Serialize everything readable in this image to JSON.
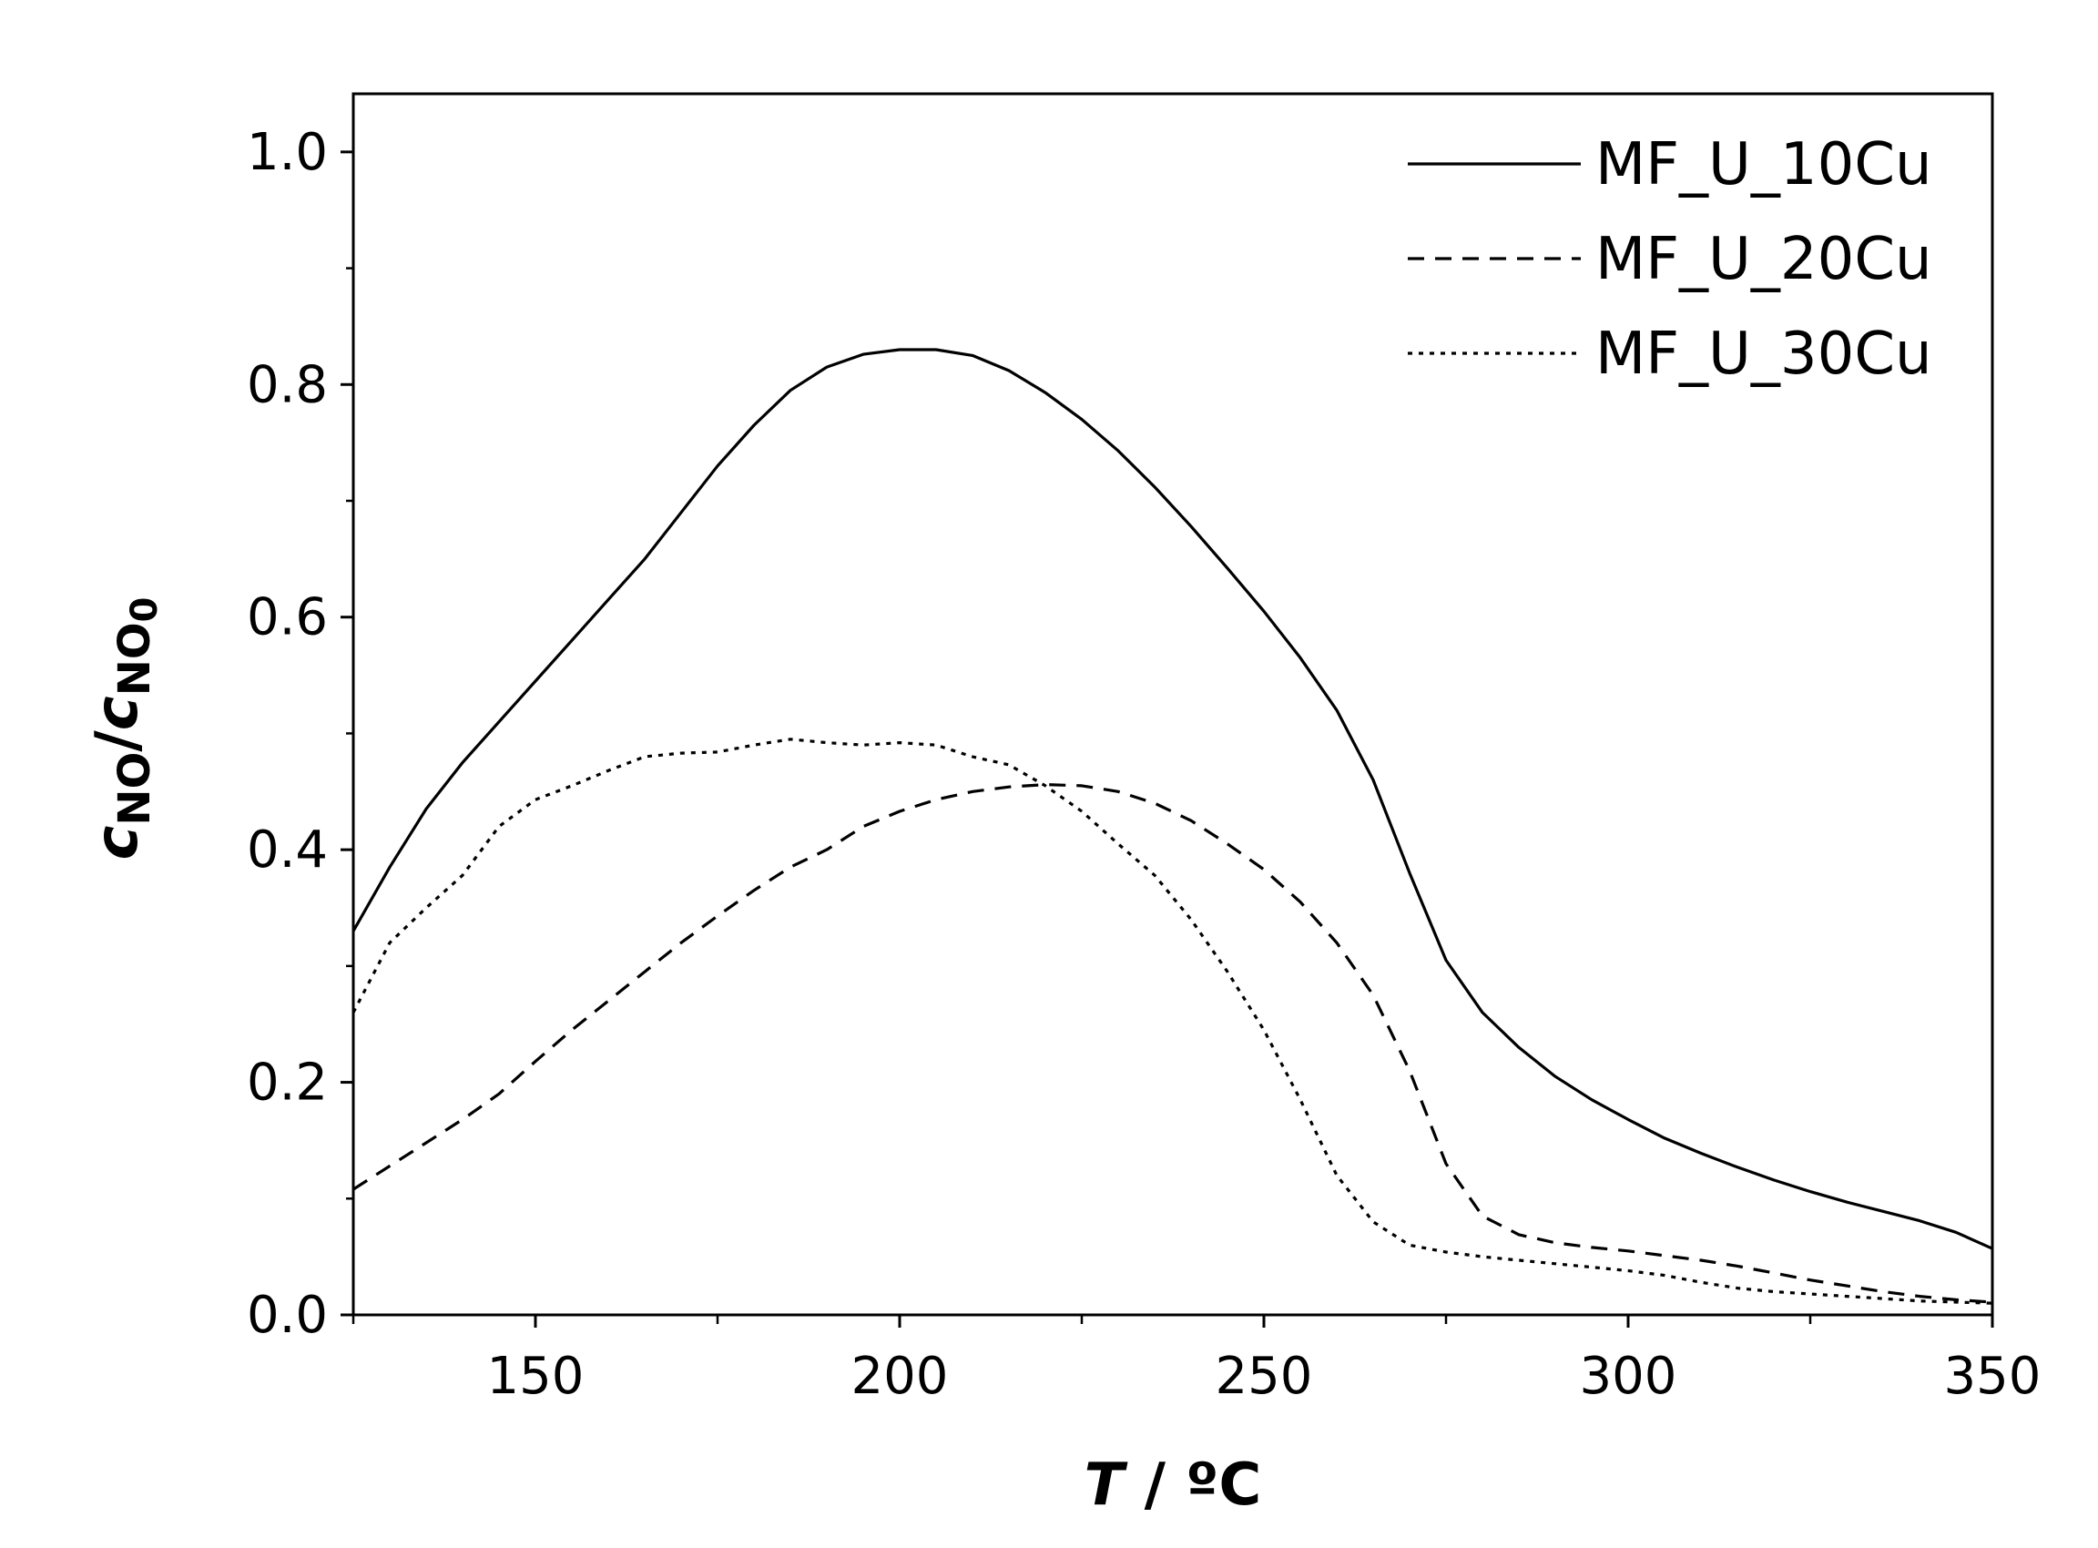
{
  "chart_data": {
    "type": "line",
    "title": "",
    "xlabel": {
      "italic": "T",
      "rest": " / ºC"
    },
    "ylabel": {
      "c1": "c",
      "sub1": "NO",
      "slash": "/",
      "c2": "c",
      "sub2": "NO",
      "subsub2": "0"
    },
    "xlim": [
      125,
      350
    ],
    "ylim": [
      0.0,
      1.05
    ],
    "xticks": [
      "150",
      "200",
      "250",
      "300",
      "350"
    ],
    "yticks": [
      "0.0",
      "0.2",
      "0.4",
      "0.6",
      "0.8",
      "1.0"
    ],
    "grid": false,
    "legend_position": "top-right",
    "series": [
      {
        "name": "MF_U_10Cu",
        "style": "solid",
        "x": [
          125,
          130,
          135,
          140,
          145,
          150,
          155,
          160,
          165,
          170,
          175,
          180,
          185,
          190,
          195,
          200,
          205,
          210,
          215,
          220,
          225,
          230,
          235,
          240,
          245,
          250,
          255,
          260,
          265,
          270,
          275,
          280,
          285,
          290,
          295,
          300,
          305,
          310,
          315,
          320,
          325,
          330,
          335,
          340,
          345,
          350
        ],
        "y": [
          0.33,
          0.385,
          0.435,
          0.475,
          0.51,
          0.545,
          0.58,
          0.615,
          0.65,
          0.69,
          0.73,
          0.765,
          0.795,
          0.815,
          0.826,
          0.83,
          0.83,
          0.825,
          0.812,
          0.793,
          0.77,
          0.743,
          0.712,
          0.678,
          0.642,
          0.605,
          0.565,
          0.52,
          0.46,
          0.38,
          0.305,
          0.26,
          0.23,
          0.205,
          0.185,
          0.168,
          0.152,
          0.139,
          0.127,
          0.116,
          0.106,
          0.097,
          0.089,
          0.081,
          0.071,
          0.057
        ]
      },
      {
        "name": "MF_U_20Cu",
        "style": "dashed",
        "x": [
          125,
          130,
          135,
          140,
          145,
          150,
          155,
          160,
          165,
          170,
          175,
          180,
          185,
          190,
          195,
          200,
          205,
          210,
          215,
          220,
          225,
          230,
          235,
          240,
          245,
          250,
          255,
          260,
          265,
          270,
          275,
          280,
          285,
          290,
          295,
          300,
          305,
          310,
          315,
          320,
          325,
          330,
          335,
          340,
          345,
          350
        ],
        "y": [
          0.108,
          0.128,
          0.148,
          0.168,
          0.19,
          0.218,
          0.245,
          0.27,
          0.295,
          0.32,
          0.343,
          0.365,
          0.385,
          0.4,
          0.42,
          0.433,
          0.443,
          0.45,
          0.454,
          0.456,
          0.455,
          0.45,
          0.44,
          0.425,
          0.405,
          0.383,
          0.355,
          0.32,
          0.275,
          0.21,
          0.13,
          0.085,
          0.069,
          0.062,
          0.058,
          0.055,
          0.051,
          0.047,
          0.042,
          0.036,
          0.03,
          0.025,
          0.02,
          0.016,
          0.013,
          0.011
        ]
      },
      {
        "name": "MF_U_30Cu",
        "style": "dotted",
        "x": [
          125,
          130,
          135,
          140,
          145,
          150,
          155,
          160,
          165,
          170,
          175,
          180,
          185,
          190,
          195,
          200,
          205,
          210,
          215,
          220,
          225,
          230,
          235,
          240,
          245,
          250,
          255,
          260,
          265,
          270,
          275,
          280,
          285,
          290,
          295,
          300,
          305,
          310,
          315,
          320,
          325,
          330,
          335,
          340,
          345,
          350
        ],
        "y": [
          0.26,
          0.32,
          0.35,
          0.378,
          0.42,
          0.443,
          0.455,
          0.468,
          0.48,
          0.483,
          0.484,
          0.49,
          0.495,
          0.492,
          0.49,
          0.492,
          0.49,
          0.48,
          0.473,
          0.455,
          0.433,
          0.405,
          0.378,
          0.34,
          0.295,
          0.245,
          0.185,
          0.12,
          0.08,
          0.06,
          0.054,
          0.05,
          0.047,
          0.044,
          0.041,
          0.038,
          0.034,
          0.028,
          0.023,
          0.02,
          0.018,
          0.016,
          0.014,
          0.012,
          0.011,
          0.01
        ]
      }
    ]
  },
  "colors": {
    "line": "#000000",
    "background": "#ffffff"
  }
}
